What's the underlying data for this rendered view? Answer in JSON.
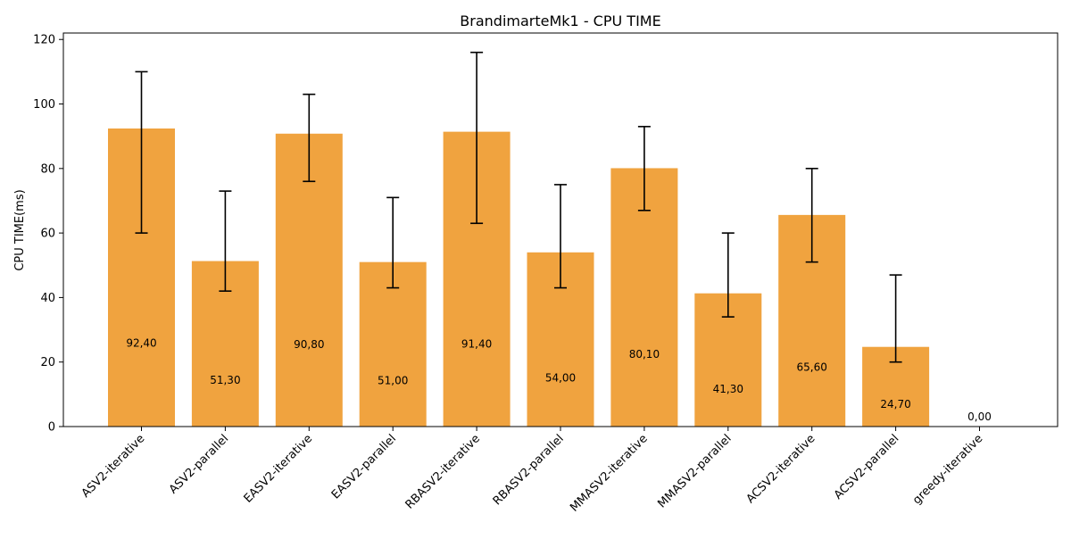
{
  "chart_data": {
    "type": "bar",
    "title": "BrandimarteMk1 - CPU TIME",
    "xlabel": "",
    "ylabel": "CPU TIME(ms)",
    "ylim": [
      0,
      122
    ],
    "yticks": [
      0,
      20,
      40,
      60,
      80,
      100,
      120
    ],
    "grid": false,
    "legend": "none",
    "bar_color": "#f0a33f",
    "categories": [
      "ASV2-iterative",
      "ASV2-parallel",
      "EASV2-iterative",
      "EASV2-parallel",
      "RBASV2-iterative",
      "RBASV2-parallel",
      "MMASV2-iterative",
      "MMASV2-parallel",
      "ACSV2-iterative",
      "ACSV2-parallel",
      "greedy-iterative"
    ],
    "values": [
      92.4,
      51.3,
      90.8,
      51.0,
      91.4,
      54.0,
      80.1,
      41.3,
      65.6,
      24.7,
      0.0
    ],
    "value_labels": [
      "92,40",
      "51,30",
      "90,80",
      "51,00",
      "91,40",
      "54,00",
      "80,10",
      "41,30",
      "65,60",
      "24,70",
      "0,00"
    ],
    "error_low": [
      60,
      42,
      76,
      43,
      63,
      43,
      67,
      34,
      51,
      20,
      null
    ],
    "error_high": [
      110,
      73,
      103,
      71,
      116,
      75,
      93,
      60,
      80,
      47,
      null
    ]
  }
}
